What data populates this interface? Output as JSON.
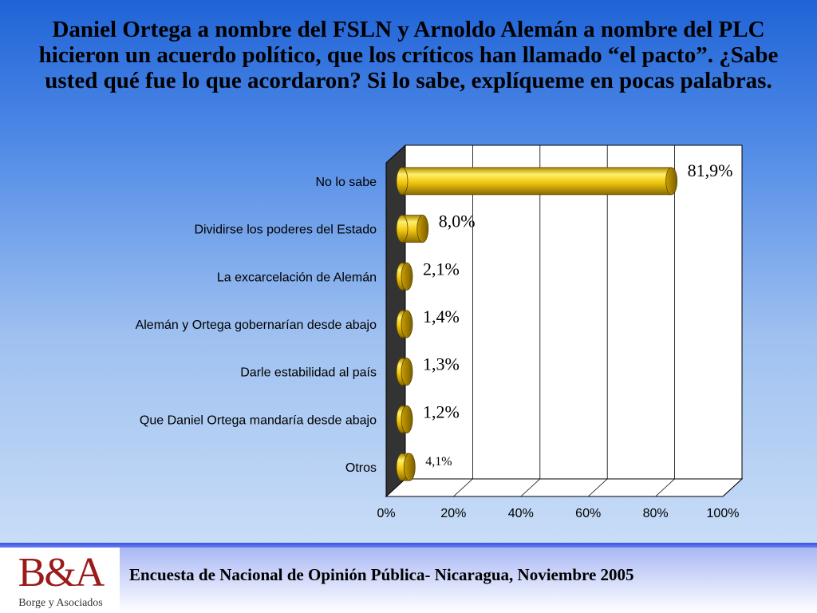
{
  "title": "Daniel Ortega a nombre del FSLN y Arnoldo Alemán a nombre del PLC hicieron un acuerdo político, que los críticos han llamado “el pacto”.   ¿Sabe usted qué fue lo que acordaron? Si lo sabe, explíqueme en pocas palabras.",
  "chart_data": {
    "type": "bar",
    "orientation": "horizontal",
    "categories": [
      "No lo sabe",
      "Dividirse los poderes del Estado",
      "La excarcelación de Alemán",
      "Alemán y Ortega gobernarían desde abajo",
      "Darle estabilidad al país",
      "Que Daniel Ortega mandaría desde abajo",
      "Otros"
    ],
    "values": [
      81.9,
      8.0,
      2.1,
      1.4,
      1.3,
      1.2,
      4.1
    ],
    "data_labels": [
      "81,9%",
      "8,0%",
      "2,1%",
      "1,4%",
      "1,3%",
      "1,2%",
      "4,1%"
    ],
    "xlim": [
      0,
      100
    ],
    "x_ticks": [
      "0%",
      "20%",
      "40%",
      "60%",
      "80%",
      "100%"
    ],
    "grid": true,
    "bar_color": "#f2c811",
    "style": "3d-cylinder"
  },
  "footer": {
    "text": "Encuesta de Nacional de Opinión Pública- Nicaragua, Noviembre 2005",
    "logo_mark": "B&A",
    "logo_subtitle": "Borge y Asociados"
  }
}
